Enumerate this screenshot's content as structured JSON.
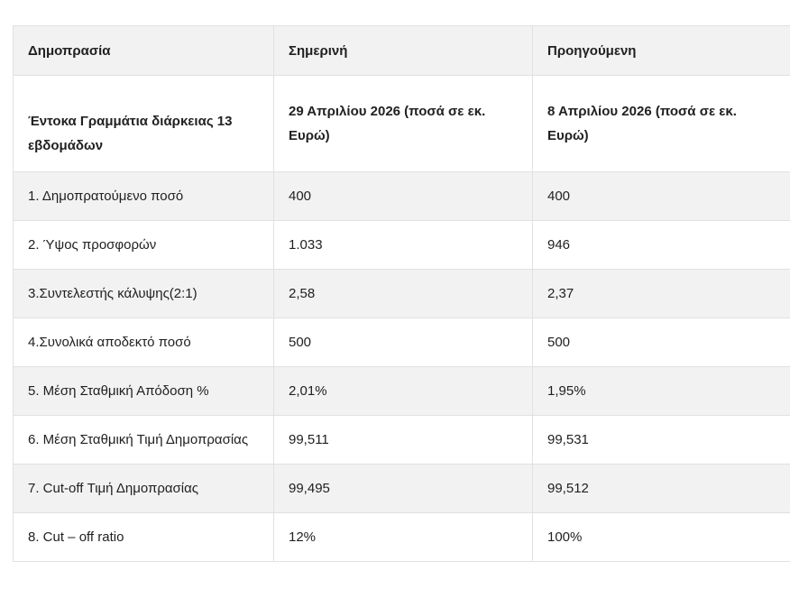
{
  "colors": {
    "stripe": "#f2f2f2",
    "rowwhite": "#ffffff",
    "border": "#e1e1e1",
    "text": "#212121"
  },
  "chart_data": {
    "type": "table",
    "columns": [
      "Δημοπρασία",
      "Σημερινή",
      "Προηγούμενη"
    ],
    "subheader": [
      "Έντοκα Γραμμάτια διάρκειας 13 εβδομάδων",
      "29 Απριλίου 2026 (ποσά σε εκ. Ευρώ)",
      "8 Απριλίου 2026 (ποσά σε εκ. Ευρώ)"
    ],
    "rows": [
      [
        "1. Δημοπρατούμενο ποσό",
        "400",
        "400"
      ],
      [
        "2. Ύψος προσφορών",
        "1.033",
        "946"
      ],
      [
        "3.Συντελεστής κάλυψης(2:1)",
        "2,58",
        "2,37"
      ],
      [
        "4.Συνολικά αποδεκτό ποσό",
        "500",
        "500"
      ],
      [
        "5. Μέση Σταθμική Απόδοση %",
        "2,01%",
        "1,95%"
      ],
      [
        "6. Μέση Σταθμική Τιμή Δημοπρασίας",
        "99,511",
        "99,531"
      ],
      [
        "7. Cut-off Τιμή Δημοπρασίας",
        "99,495",
        "99,512"
      ],
      [
        "8. Cut – off ratio",
        "12%",
        "100%"
      ]
    ],
    "layout": {
      "stripe_pattern": "header and odd data rows shaded",
      "grid": true,
      "legend": false
    }
  }
}
